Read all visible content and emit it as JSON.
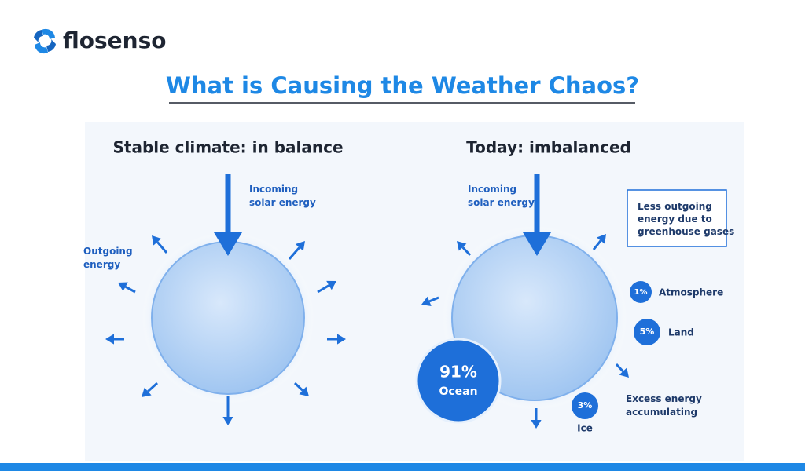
{
  "brand": "flosenso",
  "title": "What is Causing the Weather Chaos?",
  "panels": [
    {
      "heading": "Stable climate: in balance",
      "incoming": [
        "Incoming",
        "solar energy"
      ],
      "outgoing": [
        "Outgoing",
        "energy"
      ]
    },
    {
      "heading": "Today: imbalanced",
      "incoming": [
        "Incoming",
        "solar energy"
      ],
      "note": [
        "Less outgoing",
        "energy due to",
        "greenhouse gases"
      ],
      "breakdown": [
        {
          "share": "1%",
          "label": "Atmosphere"
        },
        {
          "share": "5%",
          "label": "Land"
        },
        {
          "share": "91%",
          "label": "Ocean"
        },
        {
          "share": "3%",
          "label": "Ice"
        }
      ],
      "excess": [
        "Excess energy",
        "accumulating"
      ]
    }
  ]
}
